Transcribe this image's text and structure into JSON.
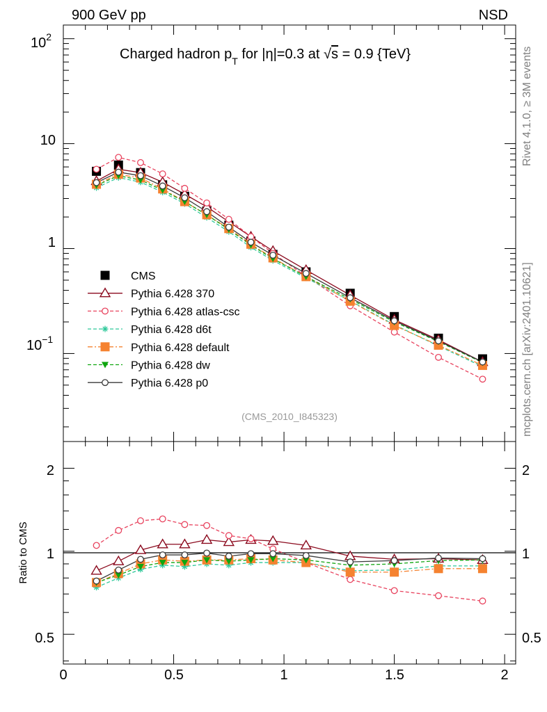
{
  "header": {
    "left": "900 GeV pp",
    "right": "NSD"
  },
  "side_labels": {
    "rivet": "Rivet 4.1.0, ≥ 3M events",
    "mcplots": "mcplots.cern.ch [arXiv:2401.10621]"
  },
  "chart_data": [
    {
      "type": "scatter",
      "title": "Charged hadron p_T for |η|=0.3 at √s = 0.9 {TeV}",
      "title_parts": {
        "a": "Charged hadron p",
        "sub": "T",
        "b": " for |η|=0.3 at ",
        "root": "√",
        "s": "s",
        "c": " = 0.9 {TeV}"
      },
      "xlabel": "",
      "ylabel": "",
      "yscale": "log",
      "xlim": [
        0,
        2.05
      ],
      "ylim": [
        0.0145,
        135
      ],
      "x_ticks": [
        "0",
        "0.5",
        "1",
        "1.5",
        "2"
      ],
      "y_tick_labels": {
        "p2_base": "10",
        "p2_exp": "2",
        "ten": "10",
        "one": "1",
        "m1_base": "10",
        "m1_exp": "−1"
      },
      "reference_label": "(CMS_2010_I845323)",
      "legend_position": "middle-left",
      "x": [
        0.15,
        0.25,
        0.35,
        0.45,
        0.55,
        0.65,
        0.75,
        0.85,
        0.95,
        1.1,
        1.3,
        1.5,
        1.7,
        1.9
      ],
      "series": [
        {
          "name": "CMS",
          "color": "#000000",
          "marker": "square-filled",
          "line": "none",
          "values": [
            5.45,
            6.25,
            5.3,
            4.05,
            3.15,
            2.28,
            1.67,
            1.18,
            0.88,
            0.6,
            0.375,
            0.225,
            0.14,
            0.089
          ]
        },
        {
          "name": "Pythia 6.428 370",
          "color": "#8b0a1e",
          "marker": "triangle-open",
          "line": "solid",
          "values": [
            4.4,
            5.7,
            5.3,
            4.3,
            3.3,
            2.5,
            1.8,
            1.3,
            0.95,
            0.625,
            0.36,
            0.21,
            0.135,
            0.083
          ]
        },
        {
          "name": "Pythia 6.428 atlas-csc",
          "color": "#e8435e",
          "marker": "circle-open",
          "line": "dashed",
          "values": [
            5.7,
            7.4,
            6.6,
            5.15,
            3.75,
            2.72,
            1.9,
            1.3,
            0.9,
            0.545,
            0.285,
            0.16,
            0.092,
            0.057
          ]
        },
        {
          "name": "Pythia 6.428 d6t",
          "color": "#2ec89a",
          "marker": "asterisk",
          "line": "dashed",
          "values": [
            3.8,
            4.75,
            4.3,
            3.45,
            2.68,
            1.98,
            1.45,
            1.03,
            0.77,
            0.525,
            0.318,
            0.188,
            0.118,
            0.075
          ]
        },
        {
          "name": "Pythia 6.428 default",
          "color": "#f58230",
          "marker": "square-filled",
          "line": "dashdot",
          "values": [
            4.1,
            5.1,
            4.7,
            3.7,
            2.8,
            2.1,
            1.55,
            1.1,
            0.815,
            0.54,
            0.315,
            0.185,
            0.12,
            0.077
          ]
        },
        {
          "name": "Pythia 6.428 dw",
          "color": "#0fa50f",
          "marker": "triangle-down-filled",
          "line": "dashed",
          "values": [
            4.0,
            4.95,
            4.5,
            3.6,
            2.8,
            2.1,
            1.52,
            1.08,
            0.8,
            0.54,
            0.33,
            0.2,
            0.13,
            0.082
          ]
        },
        {
          "name": "Pythia 6.428 p0",
          "color": "#3a3a3a",
          "marker": "circle-open",
          "line": "solid",
          "values": [
            4.25,
            5.35,
            4.95,
            3.95,
            3.05,
            2.25,
            1.6,
            1.15,
            0.865,
            0.58,
            0.34,
            0.205,
            0.132,
            0.083
          ]
        }
      ]
    },
    {
      "type": "line",
      "title": "",
      "xlabel": "",
      "ylabel": "Ratio to CMS",
      "yscale": "log",
      "xlim": [
        0,
        2.05
      ],
      "ylim": [
        0.39,
        2.5
      ],
      "y_ticks": [
        "0.5",
        "1",
        "2"
      ],
      "reference_line": 1,
      "x": [
        0.15,
        0.25,
        0.35,
        0.45,
        0.55,
        0.65,
        0.75,
        0.85,
        0.95,
        1.1,
        1.3,
        1.5,
        1.7,
        1.9
      ],
      "series": [
        {
          "name": "Pythia 6.428 370",
          "values": [
            0.85,
            0.92,
            1.01,
            1.06,
            1.06,
            1.1,
            1.08,
            1.1,
            1.09,
            1.05,
            0.96,
            0.935,
            0.94,
            0.93
          ]
        },
        {
          "name": "Pythia 6.428 atlas-csc",
          "values": [
            1.05,
            1.19,
            1.29,
            1.31,
            1.25,
            1.24,
            1.14,
            1.11,
            1.02,
            0.91,
            0.79,
            0.72,
            0.69,
            0.66
          ]
        },
        {
          "name": "Pythia 6.428 d6t",
          "values": [
            0.74,
            0.8,
            0.86,
            0.89,
            0.88,
            0.9,
            0.89,
            0.91,
            0.91,
            0.91,
            0.85,
            0.855,
            0.885,
            0.885
          ]
        },
        {
          "name": "Pythia 6.428 default",
          "values": [
            0.77,
            0.83,
            0.9,
            0.93,
            0.92,
            0.93,
            0.93,
            0.94,
            0.93,
            0.91,
            0.84,
            0.84,
            0.865,
            0.865
          ]
        },
        {
          "name": "Pythia 6.428 dw",
          "values": [
            0.77,
            0.82,
            0.88,
            0.91,
            0.91,
            0.93,
            0.92,
            0.93,
            0.94,
            0.93,
            0.89,
            0.9,
            0.925,
            0.93
          ]
        },
        {
          "name": "Pythia 6.428 p0",
          "values": [
            0.78,
            0.855,
            0.935,
            0.97,
            0.97,
            0.985,
            0.96,
            0.98,
            0.98,
            0.965,
            0.915,
            0.925,
            0.945,
            0.94
          ]
        }
      ]
    }
  ]
}
